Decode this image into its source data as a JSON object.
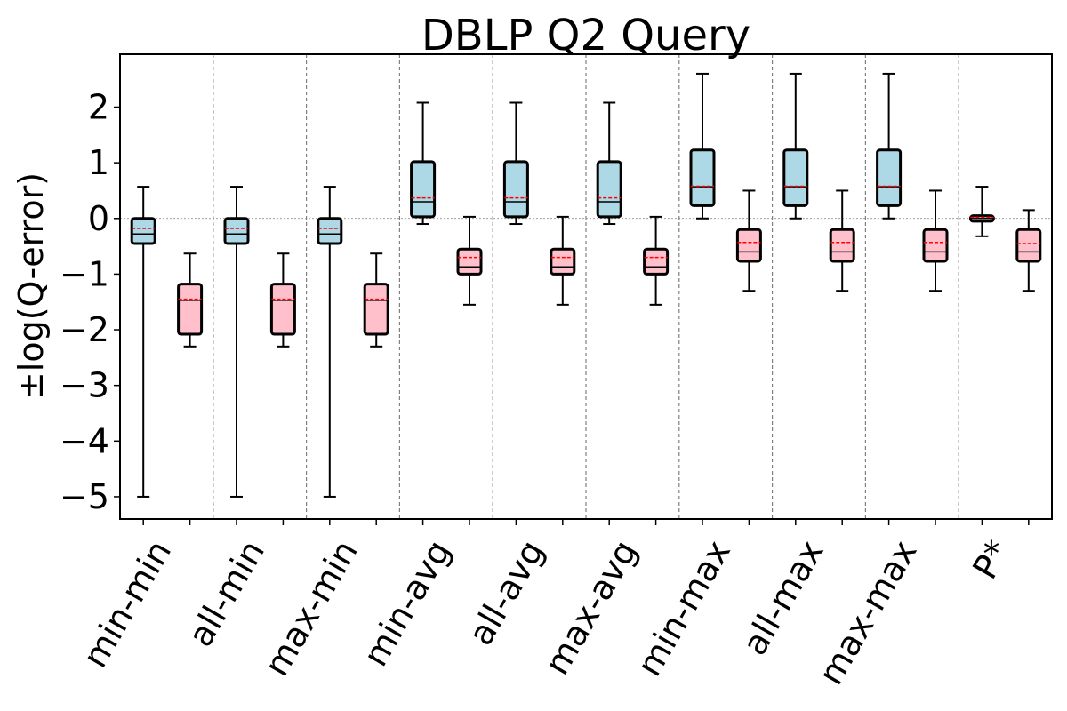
{
  "chart_data": {
    "type": "box",
    "title": "DBLP Q2 Query",
    "xlabel": "",
    "ylabel": "±log(Q-error)",
    "ylim": [
      -5.4,
      2.95
    ],
    "yticks": [
      2,
      1,
      0,
      -1,
      -2,
      -3,
      -4,
      -5
    ],
    "ytick_labels": [
      "2",
      "1",
      "0",
      "−1",
      "−2",
      "−3",
      "−4",
      "−5"
    ],
    "grid": false,
    "zero_line": true,
    "colors": {
      "over": "#add8e6",
      "under": "#ffc0cb",
      "mean_line": "#ff0000",
      "median_line": "#000000",
      "separator": "#808080"
    },
    "categories": [
      {
        "name": "min-min",
        "over": {
          "whislo": -5.0,
          "q1": -0.45,
          "med": -0.28,
          "mean": -0.18,
          "q3": 0.0,
          "whishi": 0.57
        },
        "under": {
          "whislo": -2.3,
          "q1": -2.08,
          "med": -1.47,
          "mean": -1.45,
          "q3": -1.18,
          "whishi": -0.63
        }
      },
      {
        "name": "all-min",
        "over": {
          "whislo": -5.0,
          "q1": -0.45,
          "med": -0.28,
          "mean": -0.18,
          "q3": 0.0,
          "whishi": 0.57
        },
        "under": {
          "whislo": -2.3,
          "q1": -2.08,
          "med": -1.47,
          "mean": -1.45,
          "q3": -1.18,
          "whishi": -0.63
        }
      },
      {
        "name": "max-min",
        "over": {
          "whislo": -5.0,
          "q1": -0.45,
          "med": -0.28,
          "mean": -0.18,
          "q3": 0.0,
          "whishi": 0.57
        },
        "under": {
          "whislo": -2.3,
          "q1": -2.08,
          "med": -1.47,
          "mean": -1.45,
          "q3": -1.18,
          "whishi": -0.63
        }
      },
      {
        "name": "min-avg",
        "over": {
          "whislo": -0.1,
          "q1": 0.03,
          "med": 0.3,
          "mean": 0.37,
          "q3": 1.02,
          "whishi": 2.08
        },
        "under": {
          "whislo": -1.55,
          "q1": -1.0,
          "med": -0.87,
          "mean": -0.7,
          "q3": -0.55,
          "whishi": 0.03
        }
      },
      {
        "name": "all-avg",
        "over": {
          "whislo": -0.1,
          "q1": 0.03,
          "med": 0.3,
          "mean": 0.37,
          "q3": 1.02,
          "whishi": 2.08
        },
        "under": {
          "whislo": -1.55,
          "q1": -1.0,
          "med": -0.87,
          "mean": -0.7,
          "q3": -0.55,
          "whishi": 0.03
        }
      },
      {
        "name": "max-avg",
        "over": {
          "whislo": -0.1,
          "q1": 0.03,
          "med": 0.3,
          "mean": 0.37,
          "q3": 1.02,
          "whishi": 2.08
        },
        "under": {
          "whislo": -1.55,
          "q1": -1.0,
          "med": -0.87,
          "mean": -0.7,
          "q3": -0.55,
          "whishi": 0.03
        }
      },
      {
        "name": "min-max",
        "over": {
          "whislo": 0.0,
          "q1": 0.23,
          "med": 0.57,
          "mean": 0.58,
          "q3": 1.23,
          "whishi": 2.6
        },
        "under": {
          "whislo": -1.3,
          "q1": -0.77,
          "med": -0.6,
          "mean": -0.43,
          "q3": -0.2,
          "whishi": 0.5
        }
      },
      {
        "name": "all-max",
        "over": {
          "whislo": 0.0,
          "q1": 0.23,
          "med": 0.57,
          "mean": 0.58,
          "q3": 1.23,
          "whishi": 2.6
        },
        "under": {
          "whislo": -1.3,
          "q1": -0.77,
          "med": -0.6,
          "mean": -0.43,
          "q3": -0.2,
          "whishi": 0.5
        }
      },
      {
        "name": "max-max",
        "over": {
          "whislo": 0.0,
          "q1": 0.23,
          "med": 0.57,
          "mean": 0.58,
          "q3": 1.23,
          "whishi": 2.6
        },
        "under": {
          "whislo": -1.3,
          "q1": -0.77,
          "med": -0.6,
          "mean": -0.43,
          "q3": -0.2,
          "whishi": 0.5
        }
      },
      {
        "name": "P*",
        "over": {
          "whislo": -0.32,
          "q1": -0.05,
          "med": 0.0,
          "mean": 0.02,
          "q3": 0.05,
          "whishi": 0.57
        },
        "under": {
          "whislo": -1.3,
          "q1": -0.77,
          "med": -0.6,
          "mean": -0.45,
          "q3": -0.2,
          "whishi": 0.15
        }
      }
    ]
  }
}
